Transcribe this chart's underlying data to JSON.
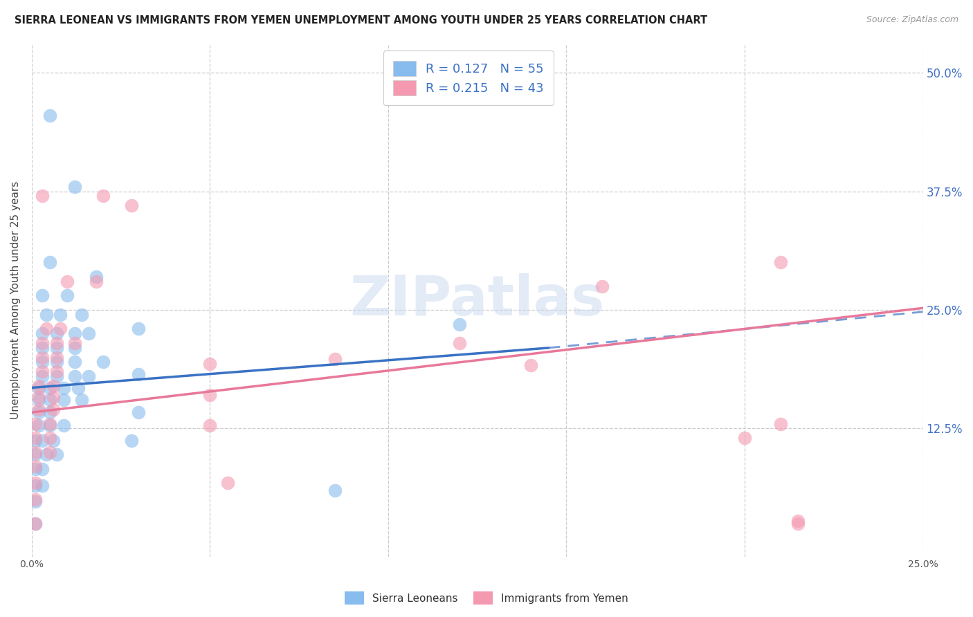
{
  "title": "SIERRA LEONEAN VS IMMIGRANTS FROM YEMEN UNEMPLOYMENT AMONG YOUTH UNDER 25 YEARS CORRELATION CHART",
  "source": "Source: ZipAtlas.com",
  "ylabel": "Unemployment Among Youth under 25 years",
  "xlim": [
    0.0,
    0.25
  ],
  "ylim": [
    -0.01,
    0.53
  ],
  "xtick_labels": [
    "0.0%",
    "",
    "",
    "",
    "",
    "25.0%"
  ],
  "xtick_vals": [
    0.0,
    0.05,
    0.1,
    0.15,
    0.2,
    0.25
  ],
  "ytick_labels": [
    "12.5%",
    "25.0%",
    "37.5%",
    "50.0%"
  ],
  "ytick_vals": [
    0.125,
    0.25,
    0.375,
    0.5
  ],
  "grid_color": "#cccccc",
  "background_color": "#ffffff",
  "blue_color": "#88bbee",
  "pink_color": "#f499b0",
  "blue_line_color": "#3a72c4",
  "pink_line_color": "#e8789a",
  "legend_label1": "R = 0.127   N = 55",
  "legend_label2": "R = 0.215   N = 43",
  "scatter_blue": [
    [
      0.005,
      0.455
    ],
    [
      0.012,
      0.38
    ],
    [
      0.005,
      0.3
    ],
    [
      0.018,
      0.285
    ],
    [
      0.003,
      0.265
    ],
    [
      0.01,
      0.265
    ],
    [
      0.004,
      0.245
    ],
    [
      0.008,
      0.245
    ],
    [
      0.014,
      0.245
    ],
    [
      0.003,
      0.225
    ],
    [
      0.007,
      0.225
    ],
    [
      0.012,
      0.225
    ],
    [
      0.016,
      0.225
    ],
    [
      0.003,
      0.21
    ],
    [
      0.007,
      0.21
    ],
    [
      0.012,
      0.21
    ],
    [
      0.003,
      0.195
    ],
    [
      0.007,
      0.195
    ],
    [
      0.012,
      0.195
    ],
    [
      0.02,
      0.195
    ],
    [
      0.003,
      0.18
    ],
    [
      0.007,
      0.18
    ],
    [
      0.012,
      0.18
    ],
    [
      0.016,
      0.18
    ],
    [
      0.002,
      0.168
    ],
    [
      0.005,
      0.168
    ],
    [
      0.009,
      0.168
    ],
    [
      0.013,
      0.168
    ],
    [
      0.002,
      0.155
    ],
    [
      0.005,
      0.155
    ],
    [
      0.009,
      0.155
    ],
    [
      0.014,
      0.155
    ],
    [
      0.002,
      0.142
    ],
    [
      0.005,
      0.142
    ],
    [
      0.002,
      0.128
    ],
    [
      0.005,
      0.128
    ],
    [
      0.009,
      0.128
    ],
    [
      0.001,
      0.112
    ],
    [
      0.003,
      0.112
    ],
    [
      0.006,
      0.112
    ],
    [
      0.001,
      0.098
    ],
    [
      0.004,
      0.098
    ],
    [
      0.007,
      0.098
    ],
    [
      0.001,
      0.082
    ],
    [
      0.003,
      0.082
    ],
    [
      0.001,
      0.065
    ],
    [
      0.003,
      0.065
    ],
    [
      0.001,
      0.048
    ],
    [
      0.001,
      0.025
    ],
    [
      0.03,
      0.23
    ],
    [
      0.03,
      0.182
    ],
    [
      0.03,
      0.142
    ],
    [
      0.028,
      0.112
    ],
    [
      0.085,
      0.06
    ],
    [
      0.12,
      0.235
    ]
  ],
  "scatter_pink": [
    [
      0.003,
      0.37
    ],
    [
      0.02,
      0.37
    ],
    [
      0.028,
      0.36
    ],
    [
      0.01,
      0.28
    ],
    [
      0.018,
      0.28
    ],
    [
      0.004,
      0.23
    ],
    [
      0.008,
      0.23
    ],
    [
      0.003,
      0.215
    ],
    [
      0.007,
      0.215
    ],
    [
      0.012,
      0.215
    ],
    [
      0.003,
      0.2
    ],
    [
      0.007,
      0.2
    ],
    [
      0.003,
      0.185
    ],
    [
      0.007,
      0.185
    ],
    [
      0.002,
      0.17
    ],
    [
      0.006,
      0.17
    ],
    [
      0.002,
      0.158
    ],
    [
      0.006,
      0.158
    ],
    [
      0.002,
      0.145
    ],
    [
      0.006,
      0.145
    ],
    [
      0.001,
      0.13
    ],
    [
      0.005,
      0.13
    ],
    [
      0.001,
      0.115
    ],
    [
      0.005,
      0.115
    ],
    [
      0.001,
      0.1
    ],
    [
      0.005,
      0.1
    ],
    [
      0.001,
      0.085
    ],
    [
      0.001,
      0.068
    ],
    [
      0.001,
      0.05
    ],
    [
      0.001,
      0.025
    ],
    [
      0.05,
      0.193
    ],
    [
      0.05,
      0.16
    ],
    [
      0.05,
      0.128
    ],
    [
      0.055,
      0.068
    ],
    [
      0.085,
      0.198
    ],
    [
      0.12,
      0.215
    ],
    [
      0.14,
      0.192
    ],
    [
      0.16,
      0.275
    ],
    [
      0.2,
      0.115
    ],
    [
      0.21,
      0.3
    ],
    [
      0.215,
      0.025
    ],
    [
      0.215,
      0.028
    ],
    [
      0.21,
      0.13
    ]
  ],
  "blue_trendline_solid": [
    [
      0.0,
      0.168
    ],
    [
      0.145,
      0.21
    ]
  ],
  "blue_trendline_dashed": [
    [
      0.145,
      0.21
    ],
    [
      0.25,
      0.248
    ]
  ],
  "pink_trendline": [
    [
      0.0,
      0.142
    ],
    [
      0.25,
      0.252
    ]
  ],
  "watermark": "ZIPatlas",
  "bottom_legend_labels": [
    "Sierra Leoneans",
    "Immigrants from Yemen"
  ]
}
